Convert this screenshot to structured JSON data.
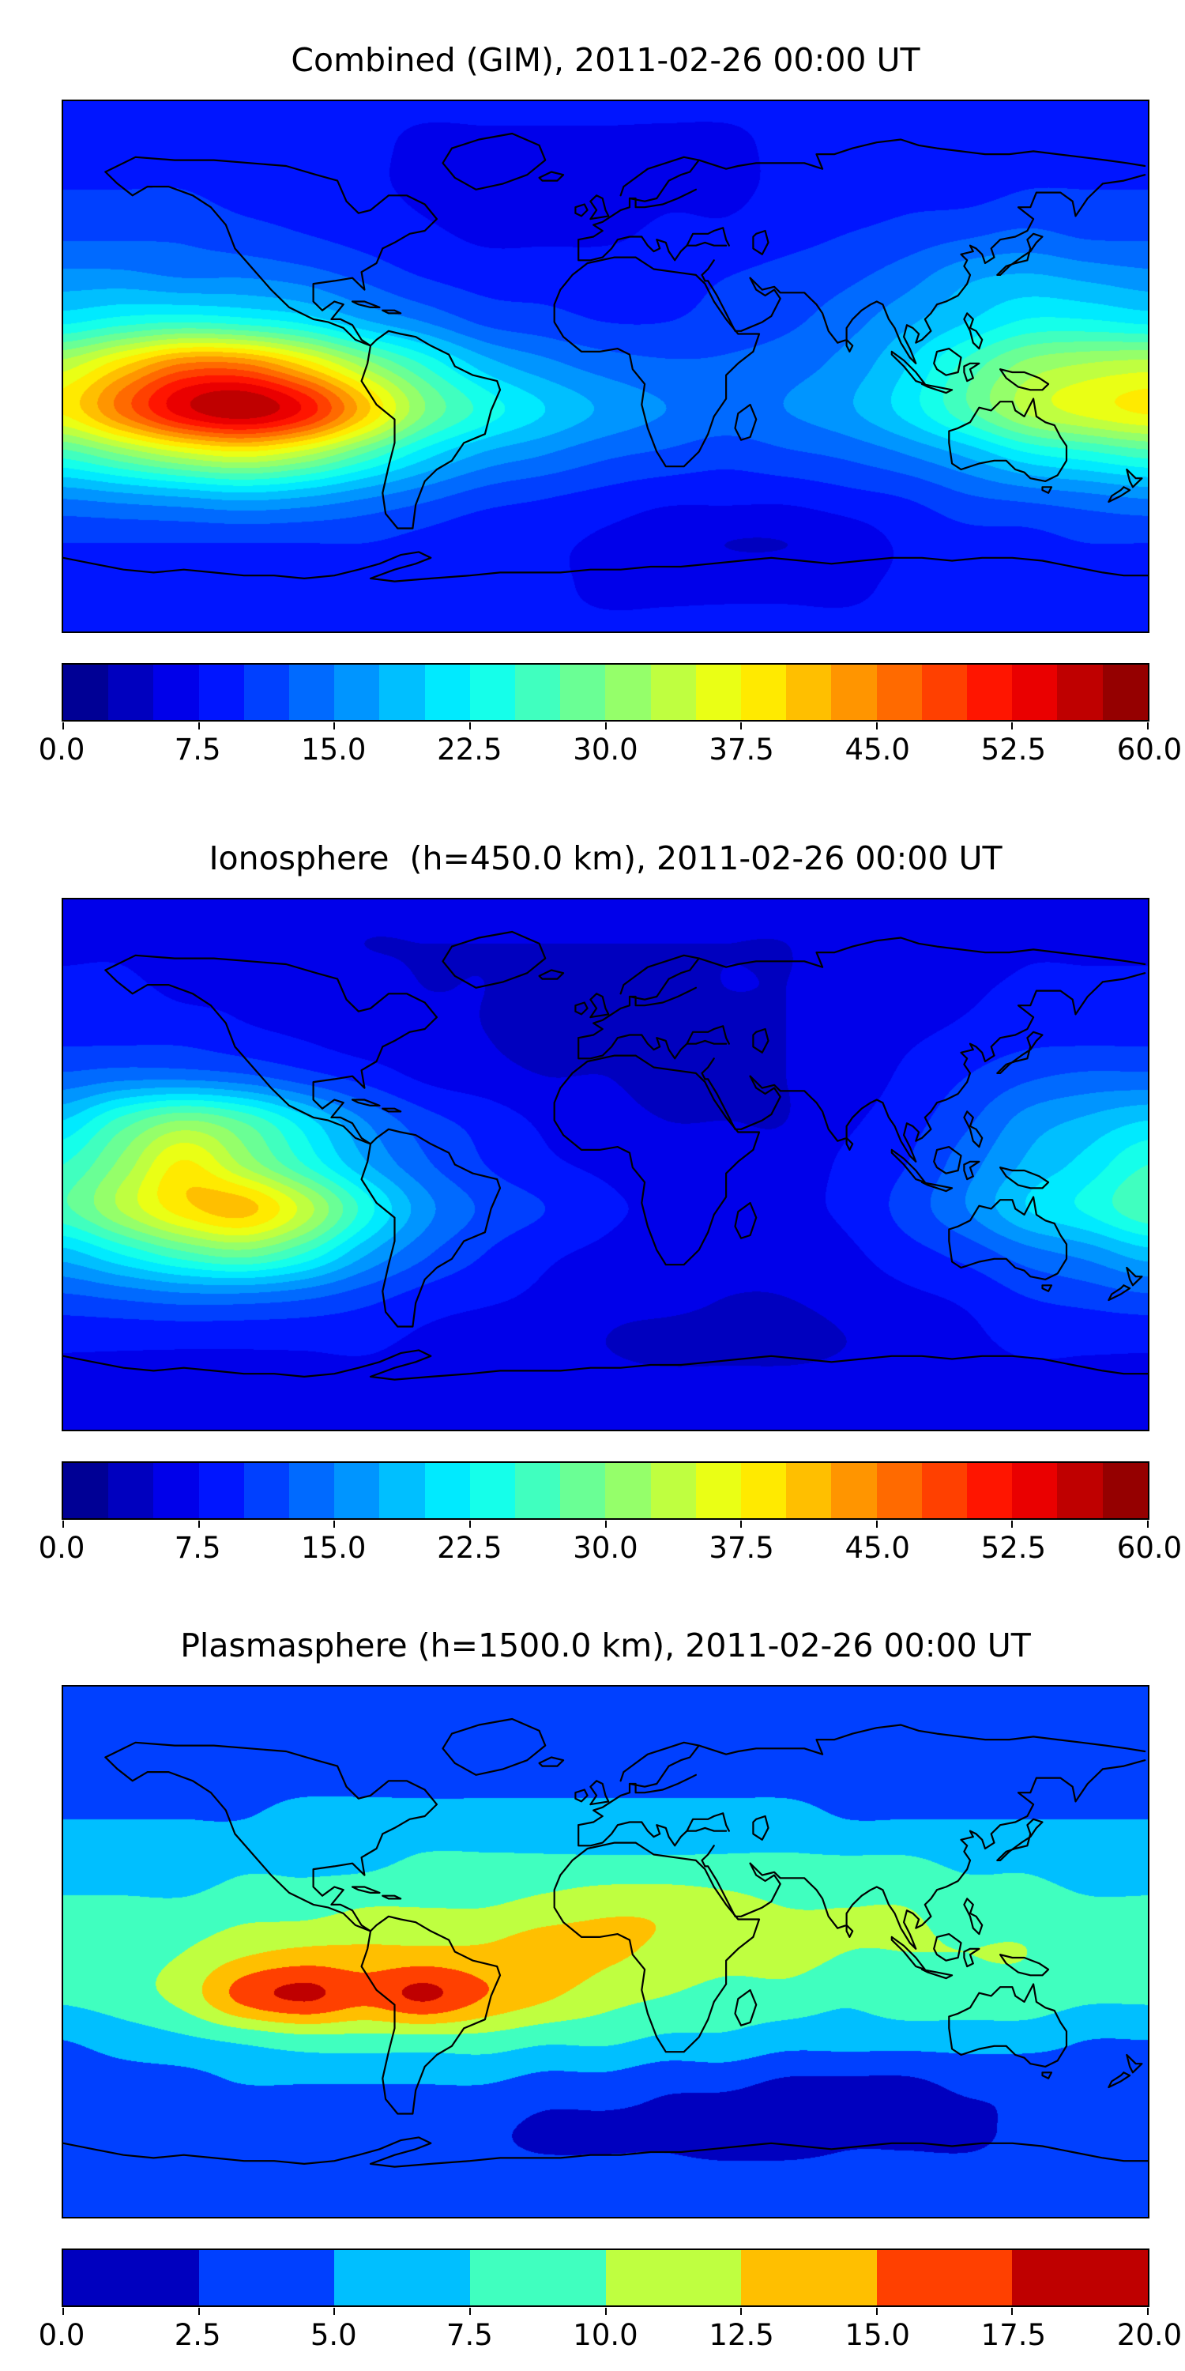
{
  "figure": {
    "description": "Three stacked global filled-contour maps with jet colormap and horizontal colorbars",
    "panel_titles": [
      "Combined (GIM), 2011-02-26 00:00 UT",
      "Ionosphere  (h=450.0 km), 2011-02-26 00:00 UT",
      "Plasmasphere (h=1500.0 km), 2011-02-26 00:00 UT"
    ]
  },
  "chart_data": [
    {
      "type": "heatmap",
      "title": "Combined (GIM), 2011-02-26 00:00 UT",
      "colormap": "jet",
      "projection": "equirectangular",
      "lon_range": [
        -180,
        180
      ],
      "lat_range": [
        -90,
        90
      ],
      "levels": {
        "min": 0,
        "max": 60,
        "step": 2.5
      },
      "n_bands": 24,
      "colorbar_ticks": [
        "0.0",
        "7.5",
        "15.0",
        "22.5",
        "30.0",
        "37.5",
        "45.0",
        "52.5",
        "60.0"
      ],
      "grid_lons": [
        -180,
        -160,
        -140,
        -120,
        -100,
        -80,
        -60,
        -40,
        -20,
        0,
        20,
        40,
        60,
        80,
        100,
        120,
        140,
        160,
        180
      ],
      "grid_lats": [
        90,
        75,
        60,
        45,
        30,
        15,
        0,
        -15,
        -30,
        -45,
        -60,
        -75,
        -90
      ],
      "values": [
        [
          8,
          8,
          8,
          8,
          8,
          8,
          8,
          8,
          8,
          8,
          8,
          8,
          8,
          8,
          8,
          8,
          8,
          8,
          8
        ],
        [
          9,
          9,
          9,
          8,
          8,
          8,
          7,
          7,
          7,
          7,
          7,
          7,
          8,
          8,
          8,
          8,
          9,
          9,
          9
        ],
        [
          10,
          10,
          10,
          9,
          9,
          8,
          7,
          6,
          6,
          6,
          7,
          7,
          8,
          8,
          9,
          9,
          10,
          10,
          10
        ],
        [
          12,
          12,
          12,
          11,
          10,
          9,
          8,
          7,
          7,
          7,
          8,
          8,
          9,
          10,
          11,
          12,
          13,
          12,
          12
        ],
        [
          16,
          16,
          15,
          15,
          14,
          12,
          10,
          9,
          9,
          9,
          9,
          10,
          11,
          12,
          14,
          17,
          18,
          17,
          16
        ],
        [
          22,
          24,
          25,
          24,
          22,
          18,
          15,
          12,
          11,
          10,
          10,
          11,
          12,
          14,
          17,
          20,
          23,
          23,
          22
        ],
        [
          34,
          40,
          46,
          46,
          40,
          32,
          25,
          19,
          16,
          14,
          13,
          13,
          14,
          16,
          20,
          26,
          31,
          33,
          34
        ],
        [
          38,
          46,
          54,
          57,
          52,
          41,
          30,
          24,
          20,
          17,
          15,
          14,
          15,
          17,
          21,
          27,
          33,
          36,
          38
        ],
        [
          26,
          30,
          34,
          36,
          33,
          27,
          21,
          17,
          15,
          13,
          12,
          11,
          12,
          13,
          15,
          18,
          22,
          24,
          26
        ],
        [
          15,
          16,
          17,
          18,
          17,
          15,
          13,
          11,
          10,
          9,
          8,
          8,
          8,
          9,
          10,
          12,
          13,
          14,
          15
        ],
        [
          10,
          10,
          10,
          10,
          10,
          10,
          9,
          8,
          8,
          7,
          6,
          5,
          5,
          6,
          8,
          9,
          9,
          10,
          10
        ],
        [
          8,
          8,
          8,
          8,
          8,
          8,
          8,
          8,
          8,
          7,
          7,
          7,
          7,
          7,
          8,
          8,
          8,
          8,
          8
        ],
        [
          8,
          8,
          8,
          8,
          8,
          8,
          8,
          8,
          8,
          8,
          8,
          8,
          8,
          8,
          8,
          8,
          8,
          8,
          8
        ]
      ]
    },
    {
      "type": "heatmap",
      "title": "Ionosphere  (h=450.0 km), 2011-02-26 00:00 UT",
      "colormap": "jet",
      "projection": "equirectangular",
      "lon_range": [
        -180,
        180
      ],
      "lat_range": [
        -90,
        90
      ],
      "levels": {
        "min": 0,
        "max": 60,
        "step": 2.5
      },
      "n_bands": 24,
      "colorbar_ticks": [
        "0.0",
        "7.5",
        "15.0",
        "22.5",
        "30.0",
        "37.5",
        "45.0",
        "52.5",
        "60.0"
      ],
      "grid_lons": [
        -180,
        -160,
        -140,
        -120,
        -100,
        -80,
        -60,
        -40,
        -20,
        0,
        20,
        40,
        60,
        80,
        100,
        120,
        140,
        160,
        180
      ],
      "grid_lats": [
        90,
        75,
        60,
        45,
        30,
        15,
        0,
        -15,
        -30,
        -45,
        -60,
        -75,
        -90
      ],
      "values": [
        [
          6,
          6,
          6,
          6,
          6,
          6,
          6,
          6,
          6,
          6,
          6,
          6,
          6,
          6,
          6,
          6,
          6,
          6,
          6
        ],
        [
          7,
          7,
          6,
          6,
          6,
          5,
          5,
          5,
          5,
          5,
          5,
          5,
          5,
          6,
          6,
          6,
          7,
          7,
          7
        ],
        [
          8,
          8,
          7,
          7,
          6,
          6,
          5,
          5,
          4,
          4,
          4,
          5,
          5,
          6,
          6,
          7,
          8,
          8,
          8
        ],
        [
          9,
          9,
          9,
          8,
          7,
          6,
          6,
          5,
          4,
          4,
          4,
          4,
          5,
          6,
          7,
          8,
          9,
          9,
          9
        ],
        [
          13,
          14,
          14,
          13,
          11,
          9,
          7,
          6,
          5,
          5,
          4,
          4,
          5,
          6,
          8,
          10,
          12,
          13,
          13
        ],
        [
          20,
          26,
          30,
          27,
          21,
          15,
          11,
          9,
          7,
          6,
          5,
          5,
          5,
          7,
          9,
          12,
          16,
          18,
          20
        ],
        [
          25,
          31,
          38,
          32,
          25,
          18,
          13,
          10,
          8,
          7,
          6,
          6,
          6,
          8,
          10,
          14,
          18,
          21,
          25
        ],
        [
          27,
          33,
          39,
          41,
          34,
          24,
          16,
          12,
          10,
          8,
          7,
          7,
          7,
          8,
          11,
          15,
          20,
          23,
          27
        ],
        [
          19,
          23,
          27,
          29,
          25,
          18,
          13,
          10,
          8,
          7,
          6,
          6,
          6,
          7,
          9,
          11,
          14,
          16,
          19
        ],
        [
          12,
          13,
          14,
          14,
          13,
          11,
          9,
          8,
          7,
          6,
          6,
          5,
          5,
          6,
          7,
          8,
          10,
          11,
          12
        ],
        [
          8,
          8,
          8,
          8,
          8,
          8,
          7,
          6,
          6,
          5,
          4,
          4,
          4,
          5,
          6,
          7,
          8,
          8,
          8
        ],
        [
          7,
          7,
          7,
          7,
          7,
          7,
          7,
          6,
          6,
          6,
          6,
          6,
          6,
          6,
          6,
          7,
          7,
          7,
          7
        ],
        [
          7,
          7,
          7,
          7,
          7,
          7,
          7,
          7,
          7,
          7,
          7,
          7,
          7,
          7,
          7,
          7,
          7,
          7,
          7
        ]
      ]
    },
    {
      "type": "heatmap",
      "title": "Plasmasphere (h=1500.0 km), 2011-02-26 00:00 UT",
      "colormap": "jet",
      "projection": "equirectangular",
      "lon_range": [
        -180,
        180
      ],
      "lat_range": [
        -90,
        90
      ],
      "levels": {
        "min": 0,
        "max": 20,
        "step": 2.5
      },
      "n_bands": 8,
      "colorbar_ticks": [
        "0.0",
        "2.5",
        "5.0",
        "7.5",
        "10.0",
        "12.5",
        "15.0",
        "17.5",
        "20.0"
      ],
      "grid_lons": [
        -180,
        -160,
        -140,
        -120,
        -100,
        -80,
        -60,
        -40,
        -20,
        0,
        20,
        40,
        60,
        80,
        100,
        120,
        140,
        160,
        180
      ],
      "grid_lats": [
        90,
        75,
        60,
        45,
        30,
        15,
        0,
        -15,
        -30,
        -45,
        -60,
        -75,
        -90
      ],
      "values": [
        [
          3,
          3,
          3,
          3,
          3,
          3,
          3,
          3,
          3,
          3,
          3,
          3,
          3,
          3,
          3,
          3,
          3,
          3,
          3
        ],
        [
          3,
          3,
          3,
          3,
          3,
          3,
          3,
          3,
          3,
          3,
          3,
          3,
          3,
          3,
          3,
          3,
          3,
          3,
          3
        ],
        [
          4,
          4,
          4,
          4,
          4,
          4,
          4,
          4,
          4,
          4,
          4,
          4,
          4,
          4,
          4,
          3,
          3,
          3,
          4
        ],
        [
          5,
          5,
          5,
          5,
          6,
          6,
          6,
          6,
          6,
          6,
          6,
          6,
          6,
          5,
          5,
          5,
          5,
          5,
          5
        ],
        [
          6,
          6,
          6,
          7,
          7,
          7,
          8,
          8,
          8,
          8,
          8,
          8,
          8,
          8,
          8,
          7,
          7,
          6,
          6
        ],
        [
          8,
          8,
          8,
          9,
          9,
          10,
          10,
          10,
          11,
          12,
          12,
          11,
          10,
          10,
          10,
          9,
          9,
          8,
          8
        ],
        [
          9,
          9,
          10,
          12,
          13,
          13,
          13,
          13,
          14,
          13,
          12,
          11,
          11,
          10,
          10,
          10,
          10,
          9,
          9
        ],
        [
          8,
          9,
          11,
          16,
          18,
          16,
          18,
          15,
          13,
          11,
          10,
          9,
          9,
          8,
          9,
          9,
          9,
          8,
          8
        ],
        [
          5,
          6,
          7,
          8,
          9,
          9,
          9,
          9,
          8,
          8,
          7,
          7,
          6,
          6,
          6,
          6,
          6,
          5,
          5
        ],
        [
          4,
          4,
          4,
          5,
          5,
          5,
          5,
          5,
          4,
          4,
          3,
          3,
          2,
          2,
          2,
          3,
          3,
          4,
          4
        ],
        [
          3,
          3,
          3,
          3,
          3,
          3,
          3,
          3,
          2,
          2,
          2,
          1,
          1,
          2,
          2,
          2,
          3,
          3,
          3
        ],
        [
          3,
          3,
          3,
          3,
          3,
          3,
          3,
          3,
          3,
          3,
          3,
          3,
          3,
          3,
          3,
          3,
          3,
          3,
          3
        ],
        [
          3,
          3,
          3,
          3,
          3,
          3,
          3,
          3,
          3,
          3,
          3,
          3,
          3,
          3,
          3,
          3,
          3,
          3,
          3
        ]
      ]
    }
  ]
}
